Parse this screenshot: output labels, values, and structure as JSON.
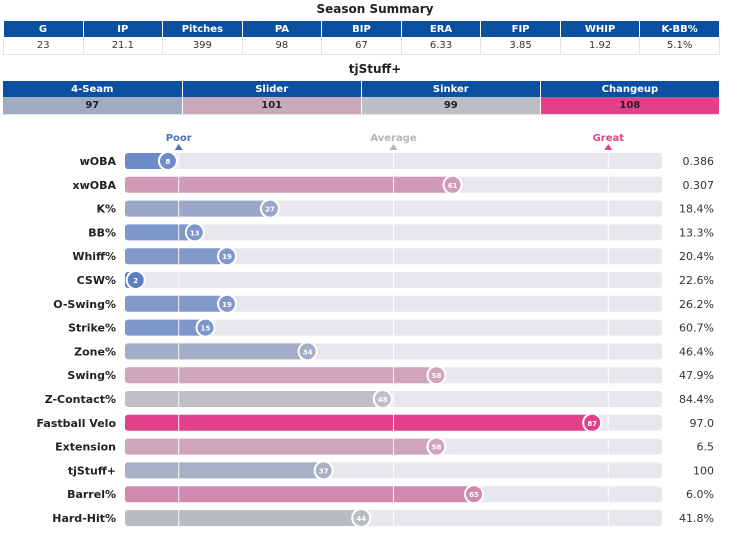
{
  "season_summary": {
    "title": "Season Summary",
    "headers": [
      "G",
      "IP",
      "Pitches",
      "PA",
      "BIP",
      "ERA",
      "FIP",
      "WHIP",
      "K-BB%"
    ],
    "values": [
      "23",
      "21.1",
      "399",
      "98",
      "67",
      "6.33",
      "3.85",
      "1.92",
      "5.1%"
    ]
  },
  "tjstuff": {
    "title": "tjStuff+",
    "pitches": [
      {
        "name": "4-Seam",
        "value": "97",
        "color": "#a1acc3"
      },
      {
        "name": "Slider",
        "value": "101",
        "color": "#c9aabb"
      },
      {
        "name": "Sinker",
        "value": "99",
        "color": "#bbbec4"
      },
      {
        "name": "Changeup",
        "value": "108",
        "color": "#e0418a"
      }
    ]
  },
  "chart_data": {
    "type": "bar",
    "orientation": "horizontal",
    "title": "",
    "xlim": [
      0,
      100
    ],
    "scale_labels": [
      {
        "label": "Poor",
        "at": 10,
        "color": "#4a72b8"
      },
      {
        "label": "Average",
        "at": 50,
        "color": "#b5b5b5"
      },
      {
        "label": "Great",
        "at": 90,
        "color": "#e0418a"
      }
    ],
    "rows": [
      {
        "metric": "wOBA",
        "percentile": 8,
        "value": "0.386",
        "color": "#6e8cc7"
      },
      {
        "metric": "xwOBA",
        "percentile": 61,
        "value": "0.307",
        "color": "#cf9bb6"
      },
      {
        "metric": "K%",
        "percentile": 27,
        "value": "18.4%",
        "color": "#9aa8c8"
      },
      {
        "metric": "BB%",
        "percentile": 13,
        "value": "13.3%",
        "color": "#7d96cb"
      },
      {
        "metric": "Whiff%",
        "percentile": 19,
        "value": "20.4%",
        "color": "#8399ca"
      },
      {
        "metric": "CSW%",
        "percentile": 2,
        "value": "22.6%",
        "color": "#5c7fc2"
      },
      {
        "metric": "O-Swing%",
        "percentile": 19,
        "value": "26.2%",
        "color": "#8399ca"
      },
      {
        "metric": "Strike%",
        "percentile": 15,
        "value": "60.7%",
        "color": "#7d96cb"
      },
      {
        "metric": "Zone%",
        "percentile": 34,
        "value": "46.4%",
        "color": "#a3aec6"
      },
      {
        "metric": "Swing%",
        "percentile": 58,
        "value": "47.9%",
        "color": "#cfa5bb"
      },
      {
        "metric": "Z-Contact%",
        "percentile": 48,
        "value": "84.4%",
        "color": "#bfc0c4"
      },
      {
        "metric": "Fastball Velo",
        "percentile": 87,
        "value": "97.0",
        "color": "#e0418a"
      },
      {
        "metric": "Extension",
        "percentile": 58,
        "value": "6.5",
        "color": "#cfa5bb"
      },
      {
        "metric": "tjStuff+",
        "percentile": 37,
        "value": "100",
        "color": "#a7b0c4"
      },
      {
        "metric": "Barrel%",
        "percentile": 65,
        "value": "6.0%",
        "color": "#d08aaf"
      },
      {
        "metric": "Hard-Hit%",
        "percentile": 44,
        "value": "41.8%",
        "color": "#b9bcc3"
      }
    ]
  }
}
